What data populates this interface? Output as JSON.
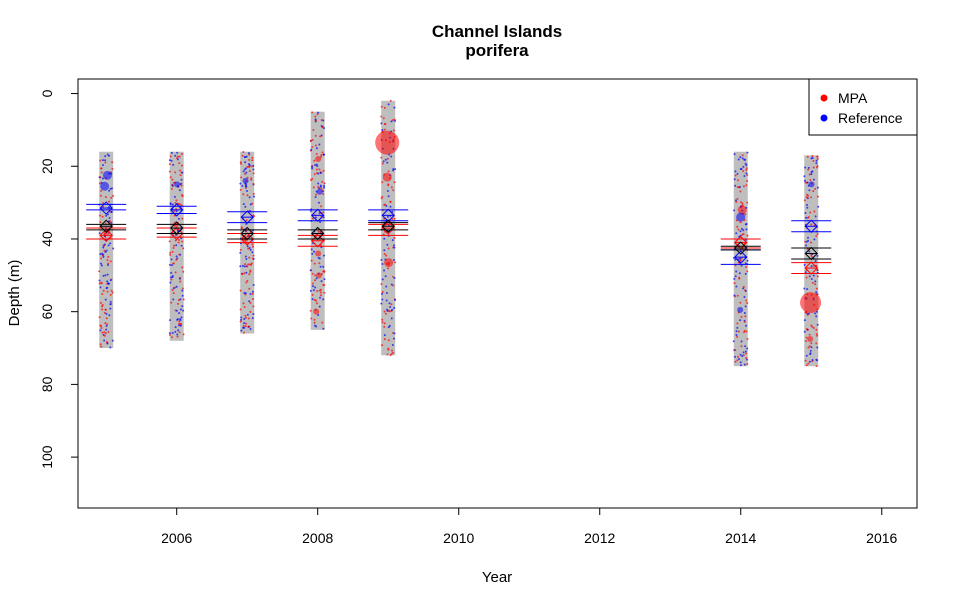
{
  "chart_data": {
    "type": "scatter",
    "title": "Channel Islands",
    "subtitle": "porifera",
    "xlabel": "Year",
    "ylabel": "Depth (m)",
    "xlim": [
      2004.6,
      2016.5
    ],
    "ylim": [
      114,
      -4
    ],
    "x_ticks": [
      2006,
      2008,
      2010,
      2012,
      2014,
      2016
    ],
    "y_ticks": [
      0,
      20,
      40,
      60,
      80,
      100
    ],
    "grid": false,
    "legend_position": "top-right",
    "colors": {
      "MPA": "#ff0000",
      "Reference": "#0000ff",
      "Combined": "#000000",
      "range": "#bebebe"
    },
    "legend": [
      {
        "label": "MPA",
        "color": "#ff0000"
      },
      {
        "label": "Reference",
        "color": "#0000ff"
      }
    ],
    "depth_ranges": [
      {
        "year": 2005,
        "min": 16,
        "max": 70
      },
      {
        "year": 2006,
        "min": 16,
        "max": 68
      },
      {
        "year": 2007,
        "min": 16,
        "max": 66
      },
      {
        "year": 2008,
        "min": 5,
        "max": 65
      },
      {
        "year": 2009,
        "min": 2,
        "max": 72
      },
      {
        "year": 2014,
        "min": 16,
        "max": 75
      },
      {
        "year": 2015,
        "min": 17,
        "max": 75
      }
    ],
    "year_means": [
      {
        "year": 2005,
        "combined": 36.5,
        "combined_ci": [
          36,
          37.5
        ],
        "mpa": 39,
        "mpa_ci": [
          37,
          40
        ],
        "reference": 31.5,
        "reference_ci": [
          30.5,
          32
        ]
      },
      {
        "year": 2006,
        "combined": 37,
        "combined_ci": [
          36,
          38.5
        ],
        "mpa": 38.5,
        "mpa_ci": [
          37,
          39.5
        ],
        "reference": 32,
        "reference_ci": [
          31,
          33
        ]
      },
      {
        "year": 2007,
        "combined": 38.5,
        "combined_ci": [
          37.5,
          40
        ],
        "mpa": 40,
        "mpa_ci": [
          38.5,
          41
        ],
        "reference": 34,
        "reference_ci": [
          32.5,
          35.5
        ]
      },
      {
        "year": 2008,
        "combined": 38.5,
        "combined_ci": [
          37.5,
          40
        ],
        "mpa": 40.5,
        "mpa_ci": [
          39,
          42
        ],
        "reference": 33.5,
        "reference_ci": [
          32,
          35
        ]
      },
      {
        "year": 2009,
        "combined": 36.5,
        "combined_ci": [
          35.5,
          37.5
        ],
        "mpa": 37,
        "mpa_ci": [
          36,
          39
        ],
        "reference": 33.5,
        "reference_ci": [
          32,
          35
        ]
      },
      {
        "year": 2014,
        "combined": 42.5,
        "combined_ci": [
          42,
          43
        ],
        "mpa": 41,
        "mpa_ci": [
          40,
          42.5
        ],
        "reference": 45,
        "reference_ci": [
          43,
          47
        ]
      },
      {
        "year": 2015,
        "combined": 44,
        "combined_ci": [
          42.5,
          45.5
        ],
        "mpa": 48,
        "mpa_ci": [
          46.5,
          49.5
        ],
        "reference": 36.5,
        "reference_ci": [
          35,
          38
        ]
      }
    ],
    "series": [
      {
        "name": "MPA",
        "color": "#ff0000",
        "points": [
          {
            "x": 2005,
            "y": 38,
            "size": 2
          },
          {
            "x": 2006,
            "y": 36,
            "size": 2
          },
          {
            "x": 2007,
            "y": 40,
            "size": 2
          },
          {
            "x": 2008,
            "y": 18,
            "size": 2
          },
          {
            "x": 2008,
            "y": 44,
            "size": 2
          },
          {
            "x": 2008,
            "y": 50,
            "size": 2
          },
          {
            "x": 2008,
            "y": 60,
            "size": 2
          },
          {
            "x": 2009,
            "y": 13.5,
            "size": 8
          },
          {
            "x": 2009,
            "y": 23,
            "size": 3
          },
          {
            "x": 2009,
            "y": 46.5,
            "size": 3
          },
          {
            "x": 2014,
            "y": 32,
            "size": 3
          },
          {
            "x": 2015,
            "y": 57.5,
            "size": 7
          },
          {
            "x": 2015,
            "y": 67.5,
            "size": 2
          }
        ]
      },
      {
        "name": "Reference",
        "color": "#0000ff",
        "points": [
          {
            "x": 2005,
            "y": 22.5,
            "size": 3
          },
          {
            "x": 2005,
            "y": 25.5,
            "size": 3
          },
          {
            "x": 2006,
            "y": 25,
            "size": 2
          },
          {
            "x": 2007,
            "y": 24,
            "size": 2
          },
          {
            "x": 2008,
            "y": 27,
            "size": 2
          },
          {
            "x": 2014,
            "y": 34,
            "size": 3
          },
          {
            "x": 2014,
            "y": 59.5,
            "size": 2
          },
          {
            "x": 2015,
            "y": 25,
            "size": 2
          }
        ]
      }
    ]
  }
}
